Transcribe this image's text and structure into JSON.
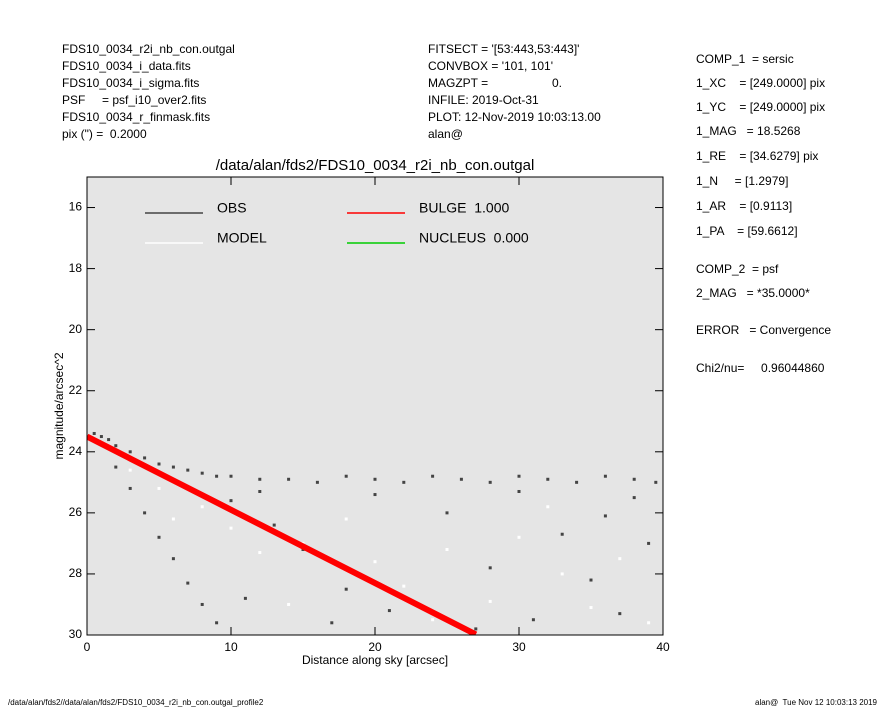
{
  "header": {
    "left": [
      "FDS10_0034_r2i_nb_con.outgal",
      "FDS10_0034_i_data.fits",
      "FDS10_0034_i_sigma.fits",
      "PSF     = psf_i10_over2.fits",
      "FDS10_0034_r_finmask.fits",
      "pix (\") =  0.2000"
    ],
    "middle": [
      "FITSECT = '[53:443,53:443]'",
      "CONVBOX = '101, 101'",
      "MAGZPT =",
      "INFILE: 2019-Oct-31",
      "PLOT: 12-Nov-2019 10:03:13.00",
      "alan@"
    ],
    "magzpt_value": "0.",
    "right": [
      "COMP_1  = sersic",
      "1_XC    = [249.0000] pix",
      "1_YC    = [249.0000] pix",
      "1_MAG   = 18.5268",
      "1_RE    = [34.6279] pix",
      "1_N     = [1.2979]",
      "1_AR    = [0.9113]",
      "1_PA    = [59.6612]",
      "COMP_2  = psf",
      "2_MAG   = *35.0000*",
      "ERROR   = Convergence",
      "Chi2/nu=     0.96044860"
    ]
  },
  "footer": {
    "left": "/data/alan/fds2//data/alan/fds2/FDS10_0034_r2i_nb_con.outgal_profile2",
    "right": "alan@  Tue Nov 12 10:03:13 2019"
  },
  "chart_data": {
    "type": "scatter",
    "title": "/data/alan/fds2/FDS10_0034_r2i_nb_con.outgal",
    "x_label": "Distance along sky [arcsec]",
    "y_label": "magnitude/arcsec^2",
    "xlim": [
      0,
      40
    ],
    "ylim": [
      30,
      15
    ],
    "y_inverted": true,
    "xticks": [
      0,
      10,
      20,
      30,
      40
    ],
    "yticks": [
      16,
      18,
      20,
      22,
      24,
      26,
      28,
      30
    ],
    "background": "#e5e5e5",
    "series": [
      {
        "name": "OBS",
        "color": "#444444",
        "mode": "points",
        "x": [
          0.5,
          1,
          1.5,
          2,
          3,
          4,
          5,
          6,
          7,
          8,
          9,
          10,
          12,
          14,
          16,
          18,
          20,
          22,
          24,
          26,
          28,
          30,
          32,
          34,
          36,
          38,
          39.5,
          2,
          3,
          4,
          5,
          6,
          7,
          8,
          9,
          10,
          13,
          15,
          18,
          21,
          25,
          28,
          31,
          33,
          35,
          37,
          39,
          12,
          20,
          30,
          38,
          11,
          17,
          27,
          36
        ],
        "y": [
          23.4,
          23.5,
          23.6,
          23.8,
          24.0,
          24.2,
          24.4,
          24.5,
          24.6,
          24.7,
          24.8,
          24.8,
          24.9,
          24.9,
          25.0,
          24.8,
          24.9,
          25.0,
          24.8,
          24.9,
          25.0,
          24.8,
          24.9,
          25.0,
          24.8,
          24.9,
          25.0,
          24.5,
          25.2,
          26.0,
          26.8,
          27.5,
          28.3,
          29.0,
          29.6,
          25.6,
          26.4,
          27.2,
          28.5,
          29.2,
          26.0,
          27.8,
          29.5,
          26.7,
          28.2,
          29.3,
          27.0,
          25.3,
          25.4,
          25.3,
          25.5,
          28.8,
          29.6,
          29.8,
          26.1
        ]
      },
      {
        "name": "MODEL",
        "color": "#ffffff",
        "mode": "points",
        "x": [
          3,
          5,
          8,
          10,
          12,
          15,
          18,
          20,
          22,
          25,
          28,
          30,
          33,
          35,
          37,
          39,
          6,
          14,
          24,
          32
        ],
        "y": [
          24.6,
          25.2,
          25.8,
          26.5,
          27.3,
          27.0,
          26.2,
          27.6,
          28.4,
          27.2,
          28.9,
          26.8,
          28.0,
          29.1,
          27.5,
          29.6,
          26.2,
          29.0,
          29.5,
          25.8
        ]
      },
      {
        "name": "BULGE  1.000",
        "color": "#ff0000",
        "mode": "line",
        "x": [
          0,
          3,
          6,
          9,
          12,
          15,
          18,
          21,
          24,
          27
        ],
        "y": [
          23.5,
          24.22,
          24.94,
          25.66,
          26.38,
          27.1,
          27.82,
          28.54,
          29.26,
          29.98
        ]
      },
      {
        "name": "NUCLEUS  0.000",
        "color": "#00cc00",
        "mode": "line",
        "x": [],
        "y": []
      }
    ]
  }
}
